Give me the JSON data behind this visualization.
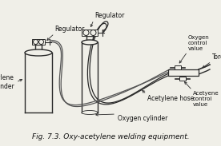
{
  "title": "Fig. 7.3. Oxy-acetylene welding equipment.",
  "bg_color": "#f0efe8",
  "line_color": "#2a2a2a",
  "labels": {
    "regulator_top": "Regulator",
    "regulator_left": "Regulator",
    "acetylene_cylinder": "Acetylene\ncylinder",
    "oxygen_cylinder": "Oxygen cylinder",
    "acetylene_hose": "Acetylene hose",
    "oxygen_control": "Oxygen\ncontrol\nvalue",
    "acetylene_control": "Acetyene\ncontrol\nvalue",
    "torch": "Torch"
  },
  "figsize": [
    2.76,
    1.83
  ],
  "dpi": 100
}
